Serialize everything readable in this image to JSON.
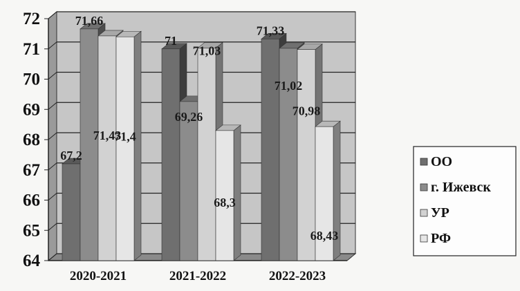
{
  "chart_data": {
    "type": "bar",
    "title": "",
    "xlabel": "",
    "ylabel": "",
    "categories": [
      "2020-2021",
      "2021-2022",
      "2022-2023"
    ],
    "yticks": [
      "64",
      "65",
      "66",
      "67",
      "68",
      "69",
      "70",
      "71",
      "72"
    ],
    "ylim": [
      64,
      72
    ],
    "series": [
      {
        "name": "ОО",
        "values": [
          67.2,
          71,
          71.33
        ],
        "labels": [
          "67,2",
          "71",
          "71,33"
        ],
        "color": "#6f6f6f"
      },
      {
        "name": "г. Ижевск",
        "values": [
          71.66,
          69.26,
          71.02
        ],
        "labels": [
          "71,66",
          "69,26",
          "71,02"
        ],
        "color": "#8c8c8c"
      },
      {
        "name": "УР",
        "values": [
          71.43,
          71.03,
          70.98
        ],
        "labels": [
          "71,43",
          "71,03",
          "70,98"
        ],
        "color": "#d2d2d2"
      },
      {
        "name": "РФ",
        "values": [
          71.4,
          68.3,
          68.43
        ],
        "labels": [
          "71,4",
          "68,3",
          "68,43"
        ],
        "color": "#e6e6e6"
      }
    ],
    "grid": true,
    "three_d": true,
    "legend_position": "right"
  }
}
